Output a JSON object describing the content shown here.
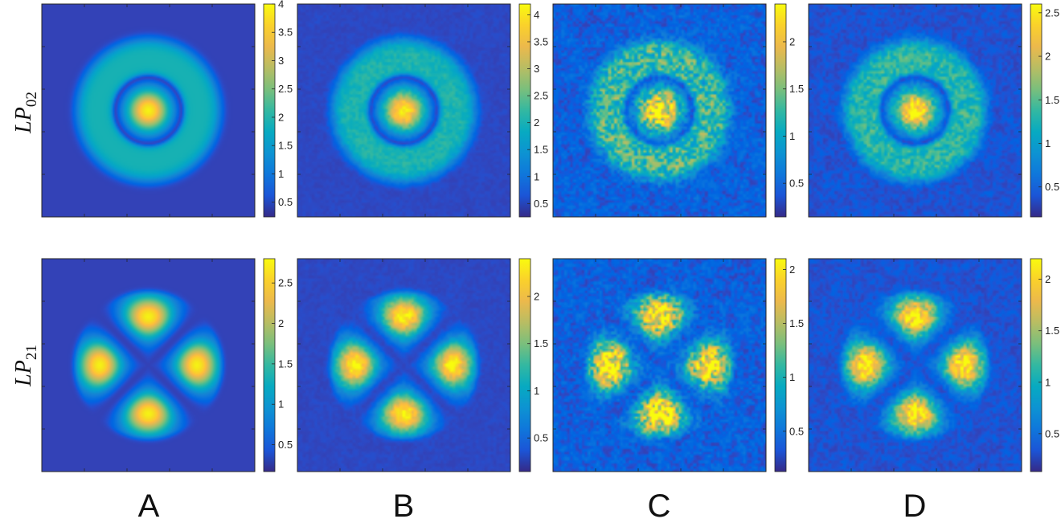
{
  "chart_data": {
    "type": "heatmap",
    "colormap": "parula",
    "columns": [
      "A",
      "B",
      "C",
      "D"
    ],
    "rows": [
      {
        "label_main": "LP",
        "label_sub": "02",
        "pattern": "ring"
      },
      {
        "label_main": "LP",
        "label_sub": "21",
        "pattern": "four-lobe"
      }
    ],
    "panels": [
      {
        "row": 0,
        "col": 0,
        "noise": 0.0,
        "cmax": 4.0,
        "ticks": [
          0.5,
          1,
          1.5,
          2,
          2.5,
          3,
          3.5,
          4
        ],
        "tick_labels": [
          "0.5",
          "1",
          "1.5",
          "2",
          "2.5",
          "3",
          "3.5",
          "4"
        ]
      },
      {
        "row": 0,
        "col": 1,
        "noise": 0.12,
        "cmax": 4.2,
        "ticks": [
          0.5,
          1,
          1.5,
          2,
          2.5,
          3,
          3.5,
          4
        ],
        "tick_labels": [
          "0.5",
          "1",
          "1.5",
          "2",
          "2.5",
          "3",
          "3.5",
          "4"
        ]
      },
      {
        "row": 0,
        "col": 2,
        "noise": 0.55,
        "cmax": 2.4,
        "ticks": [
          0.5,
          1,
          1.5,
          2
        ],
        "tick_labels": [
          "0.5",
          "1",
          "1.5",
          "2"
        ]
      },
      {
        "row": 0,
        "col": 3,
        "noise": 0.3,
        "cmax": 2.6,
        "ticks": [
          0.5,
          1,
          1.5,
          2,
          2.5
        ],
        "tick_labels": [
          "0.5",
          "1",
          "1.5",
          "2",
          "2.5"
        ]
      },
      {
        "row": 1,
        "col": 0,
        "noise": 0.0,
        "cmax": 2.8,
        "ticks": [
          0.5,
          1,
          1.5,
          2,
          2.5
        ],
        "tick_labels": [
          "0.5",
          "1",
          "1.5",
          "2",
          "2.5"
        ]
      },
      {
        "row": 1,
        "col": 1,
        "noise": 0.12,
        "cmax": 2.4,
        "ticks": [
          0.5,
          1,
          1.5,
          2
        ],
        "tick_labels": [
          "0.5",
          "1",
          "1.5",
          "2"
        ]
      },
      {
        "row": 1,
        "col": 2,
        "noise": 0.55,
        "cmax": 2.1,
        "ticks": [
          0.5,
          1,
          1.5,
          2
        ],
        "tick_labels": [
          "0.5",
          "1",
          "1.5",
          "2"
        ]
      },
      {
        "row": 1,
        "col": 3,
        "noise": 0.3,
        "cmax": 2.2,
        "ticks": [
          0.5,
          1,
          1.5,
          2
        ],
        "tick_labels": [
          "0.5",
          "1",
          "1.5",
          "2"
        ]
      }
    ]
  }
}
